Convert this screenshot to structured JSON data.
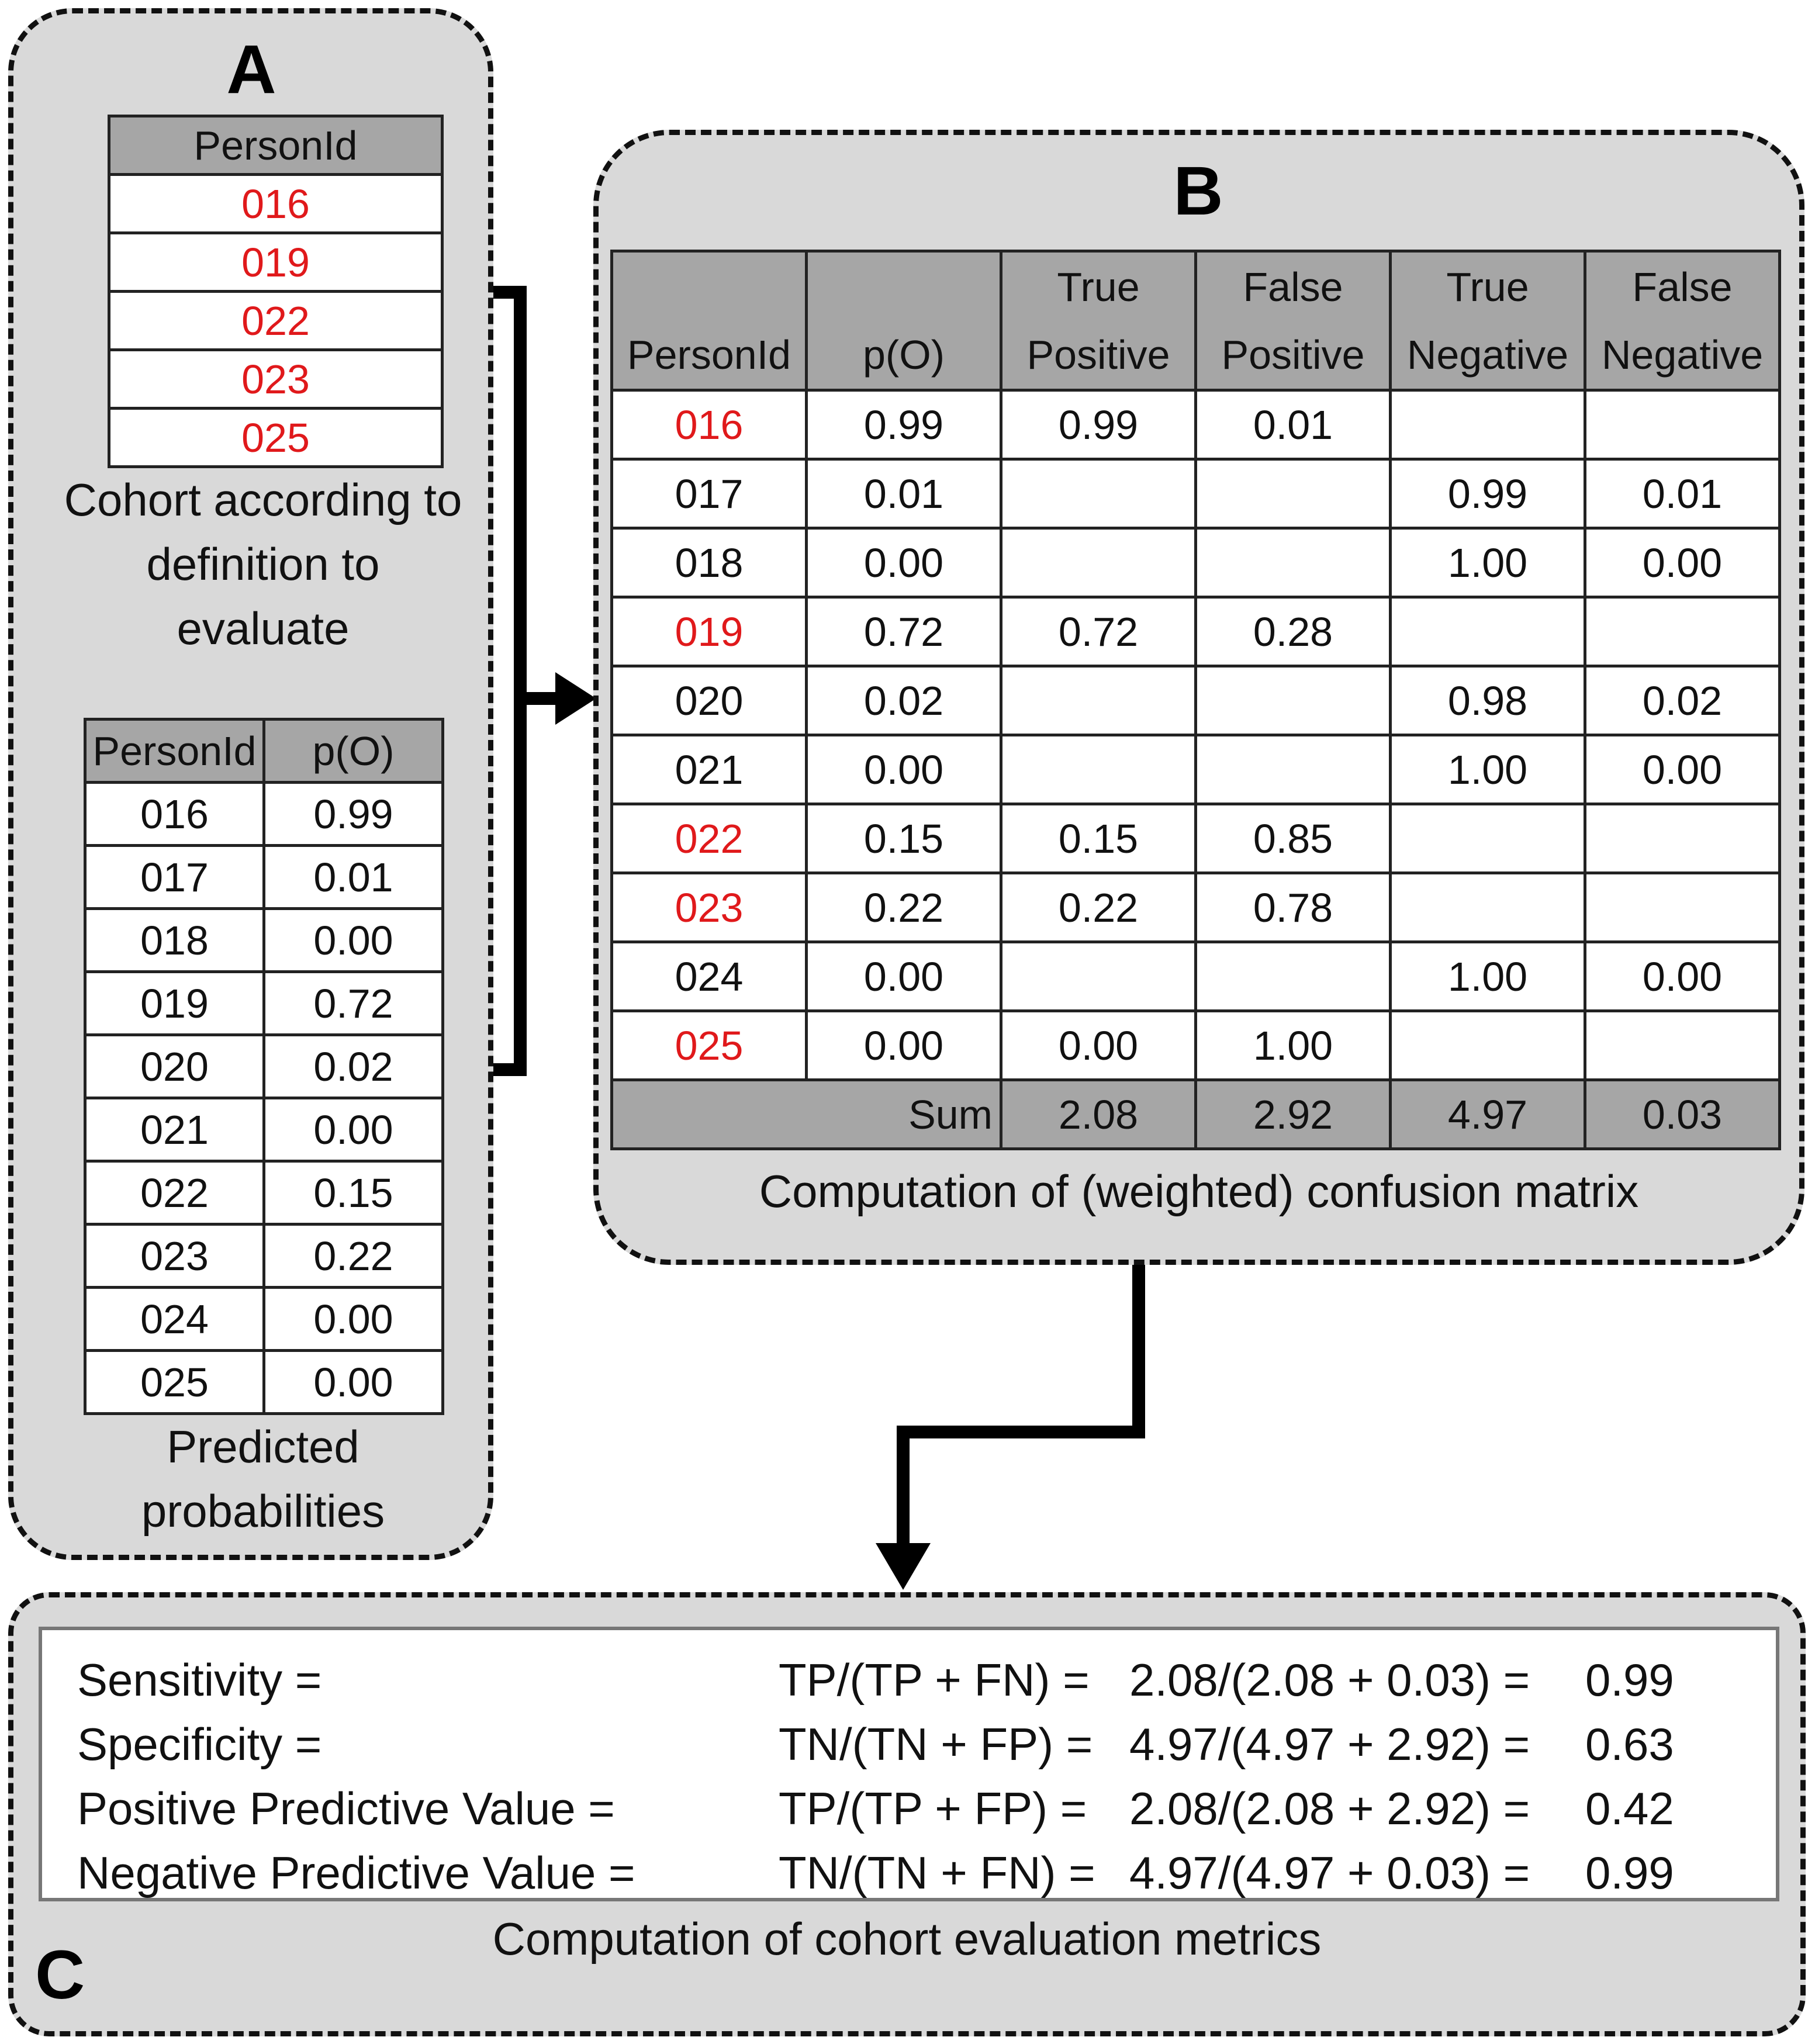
{
  "panel_a": {
    "letter": "A",
    "cohort_table": {
      "header": "PersonId",
      "rows": [
        "016",
        "019",
        "022",
        "023",
        "025"
      ]
    },
    "cohort_caption": [
      "Cohort according to",
      "definition to",
      "evaluate"
    ],
    "prob_table": {
      "headers": [
        "PersonId",
        "p(O)"
      ],
      "rows": [
        [
          "016",
          "0.99"
        ],
        [
          "017",
          "0.01"
        ],
        [
          "018",
          "0.00"
        ],
        [
          "019",
          "0.72"
        ],
        [
          "020",
          "0.02"
        ],
        [
          "021",
          "0.00"
        ],
        [
          "022",
          "0.15"
        ],
        [
          "023",
          "0.22"
        ],
        [
          "024",
          "0.00"
        ],
        [
          "025",
          "0.00"
        ]
      ]
    },
    "prob_caption": [
      "Predicted",
      "probabilities"
    ]
  },
  "panel_b": {
    "letter": "B",
    "headers": [
      [
        "",
        "PersonId"
      ],
      [
        "",
        "p(O)"
      ],
      [
        "True",
        "Positive"
      ],
      [
        "False",
        "Positive"
      ],
      [
        "True",
        "Negative"
      ],
      [
        "False",
        "Negative"
      ]
    ],
    "rows": [
      {
        "id": "016",
        "in_cohort": true,
        "p": "0.99",
        "tp": "0.99",
        "fp": "0.01",
        "tn": "",
        "fn": ""
      },
      {
        "id": "017",
        "in_cohort": false,
        "p": "0.01",
        "tp": "",
        "fp": "",
        "tn": "0.99",
        "fn": "0.01"
      },
      {
        "id": "018",
        "in_cohort": false,
        "p": "0.00",
        "tp": "",
        "fp": "",
        "tn": "1.00",
        "fn": "0.00"
      },
      {
        "id": "019",
        "in_cohort": true,
        "p": "0.72",
        "tp": "0.72",
        "fp": "0.28",
        "tn": "",
        "fn": ""
      },
      {
        "id": "020",
        "in_cohort": false,
        "p": "0.02",
        "tp": "",
        "fp": "",
        "tn": "0.98",
        "fn": "0.02"
      },
      {
        "id": "021",
        "in_cohort": false,
        "p": "0.00",
        "tp": "",
        "fp": "",
        "tn": "1.00",
        "fn": "0.00"
      },
      {
        "id": "022",
        "in_cohort": true,
        "p": "0.15",
        "tp": "0.15",
        "fp": "0.85",
        "tn": "",
        "fn": ""
      },
      {
        "id": "023",
        "in_cohort": true,
        "p": "0.22",
        "tp": "0.22",
        "fp": "0.78",
        "tn": "",
        "fn": ""
      },
      {
        "id": "024",
        "in_cohort": false,
        "p": "0.00",
        "tp": "",
        "fp": "",
        "tn": "1.00",
        "fn": "0.00"
      },
      {
        "id": "025",
        "in_cohort": true,
        "p": "0.00",
        "tp": "0.00",
        "fp": "1.00",
        "tn": "",
        "fn": ""
      }
    ],
    "sum_row": {
      "label": "Sum",
      "tp": "2.08",
      "fp": "2.92",
      "tn": "4.97",
      "fn": "0.03"
    },
    "caption": "Computation of (weighted) confusion matrix"
  },
  "panel_c": {
    "letter": "C",
    "metrics": [
      {
        "name": "Sensitivity =",
        "formula": "TP/(TP + FN) =",
        "calc": "2.08/(2.08 + 0.03) =",
        "value": "0.99"
      },
      {
        "name": "Specificity =",
        "formula": "TN/(TN + FP) =",
        "calc": "4.97/(4.97 + 2.92) =",
        "value": "0.63"
      },
      {
        "name": "Positive Predictive Value =",
        "formula": "TP/(TP + FP) =",
        "calc": "2.08/(2.08 + 2.92) =",
        "value": "0.42"
      },
      {
        "name": "Negative Predictive Value =",
        "formula": "TN/(TN + FN) =",
        "calc": "4.97/(4.97 + 0.03) =",
        "value": "0.99"
      }
    ],
    "caption": "Computation of cohort evaluation metrics"
  },
  "colors": {
    "panel_bg": "#d9d9d9",
    "header_bg": "#a6a6a6",
    "cohort_id": "#e0191b",
    "border": "#111111"
  }
}
